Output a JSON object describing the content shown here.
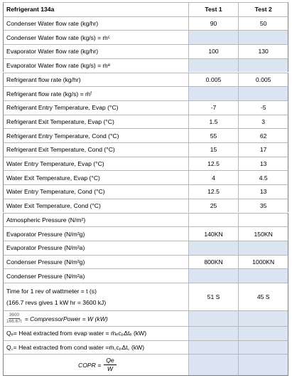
{
  "header": {
    "label": "Refrigerant 134a",
    "test1": "Test 1",
    "test2": "Test 2"
  },
  "rows": [
    {
      "label": "Condenser Water flow rate (kg/hr)",
      "test1": "90",
      "test2": "50",
      "shaded": false
    },
    {
      "label": "Condenser Water flow rate (kg/s) = ṁ",
      "sub": "c",
      "test1": "",
      "test2": "",
      "shaded": true
    },
    {
      "label": "Evaporator Water flow rate (kg/hr)",
      "test1": "100",
      "test2": "130",
      "shaded": false
    },
    {
      "label": "Evaporator Water flow rate (kg/s) = ṁ",
      "sub": "e",
      "test1": "",
      "test2": "",
      "shaded": true
    },
    {
      "label": "Refrigerant flow rate (kg/hr)",
      "test1": "0.005",
      "test2": "0.005",
      "shaded": false
    },
    {
      "label": "Refrigerant flow rate (kg/s) = ṁ",
      "sub": "f",
      "test1": "",
      "test2": "",
      "shaded": true
    },
    {
      "label": "Refrigerant Entry Temperature, Evap (°C)",
      "test1": "-7",
      "test2": "-5",
      "shaded": false
    },
    {
      "label": "Refrigerant Exit Temperature, Evap (°C)",
      "test1": "1.5",
      "test2": "3",
      "shaded": false
    },
    {
      "label": "Refrigerant Entry Temperature, Cond (°C)",
      "test1": "55",
      "test2": "62",
      "shaded": false
    },
    {
      "label": "Refrigerant Exit Temperature, Cond (°C)",
      "test1": "15",
      "test2": "17",
      "shaded": false
    },
    {
      "label": "Water Entry Temperature, Evap (°C)",
      "test1": "12.5",
      "test2": "13",
      "shaded": false
    },
    {
      "label": "Water Exit Temperature, Evap (°C)",
      "test1": "4",
      "test2": "4.5",
      "shaded": false
    },
    {
      "label": "Water Entry Temperature, Cond (°C)",
      "test1": "12.5",
      "test2": "13",
      "shaded": false
    },
    {
      "label": "Water Exit Temperature, Cond (°C)",
      "test1": "25",
      "test2": "35",
      "shaded": false
    },
    {
      "label": "Atmospheric Pressure (N/m²)",
      "test1": "",
      "test2": "",
      "shaded": false
    },
    {
      "label": "Evaporator Pressure (N/m²g)",
      "test1": "140KN",
      "test2": "150KN",
      "shaded": false
    },
    {
      "label": "Evaporator Pressure (N/m²a)",
      "test1": "",
      "test2": "",
      "shaded": true
    },
    {
      "label": "Condenser Pressure (N/m²g)",
      "test1": "800KN",
      "test2": "1000KN",
      "shaded": false
    },
    {
      "label": "Condenser Pressure (N/m²a)",
      "test1": "",
      "test2": "",
      "shaded": true
    }
  ],
  "wattmeter": {
    "line1": "Time for 1 rev of wattmeter = t (s)",
    "line2": "(166.7 revs gives 1 kW hr = 3600 kJ)",
    "test1": "51 S",
    "test2": "45 S"
  },
  "power": {
    "frac_num": "3600",
    "frac_den": "166.67t",
    "text": "= CompressorPower  =  W (kW)"
  },
  "heat_evap": {
    "text": "Q꜀= Heat extracted from evap water = ṁ꜀c꜀Δt꜀ (kW)",
    "display": "Qₑ= Heat extracted from evap water = ṁₑcₚΔtₑ (kW)"
  },
  "heat_cond": {
    "display": "Q꜀= Heat extracted from cond water =ṁ꜀cₚΔt꜀ (kW)"
  },
  "cop": {
    "lhs": "COPR =",
    "num": "Qe",
    "den": "W"
  }
}
